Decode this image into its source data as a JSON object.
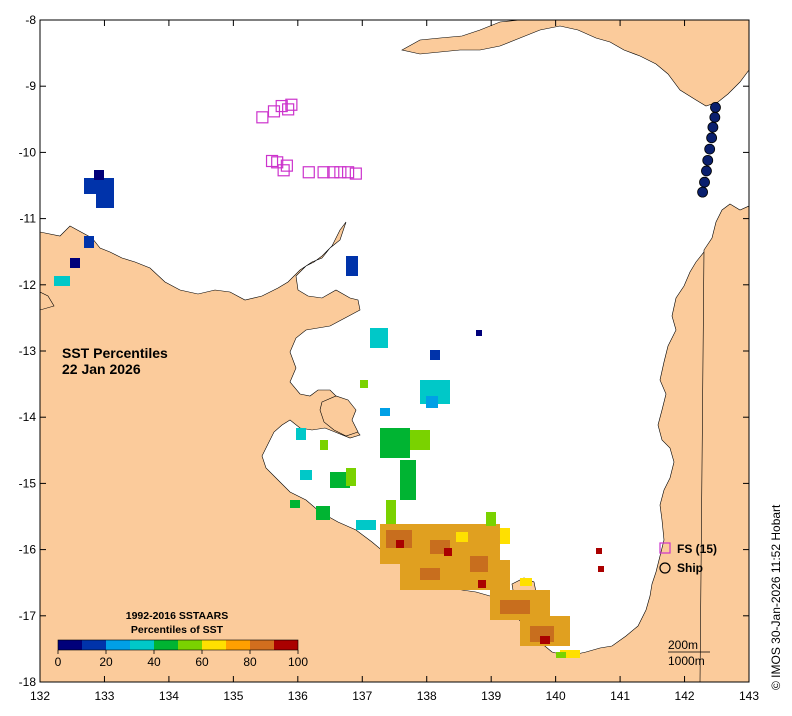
{
  "map": {
    "title_line1": "SST Percentiles",
    "title_line2": "22 Jan 2026",
    "credit": "© IMOS 30-Jan-2026 11:52 Hobart",
    "lon_range": [
      132,
      143
    ],
    "lat_range": [
      -18,
      -8
    ],
    "lon_ticks": [
      "132",
      "133",
      "134",
      "135",
      "136",
      "137",
      "138",
      "139",
      "140",
      "141",
      "142",
      "143"
    ],
    "lat_ticks": [
      "-8",
      "-9",
      "-10",
      "-11",
      "-12",
      "-13",
      "-14",
      "-15",
      "-16",
      "-17",
      "-18"
    ],
    "land_color": "#fbcb9b",
    "sea_color": "#ffffff"
  },
  "legend": {
    "fs_label": "FS (15)",
    "ship_label": "Ship",
    "fs_color": "#cc33cc",
    "ship_color": "#000000"
  },
  "colorbar": {
    "title_line1": "1992-2016 SSTAARS",
    "title_line2": "Percentiles of SST",
    "tick_labels": [
      "0",
      "20",
      "40",
      "60",
      "80",
      "100"
    ],
    "colors": [
      "#00007a",
      "#0033aa",
      "#00a0e6",
      "#00c8c8",
      "#00b432",
      "#7ad200",
      "#ffe000",
      "#ffa000",
      "#d26e1e",
      "#aa0000"
    ]
  },
  "depth_contours": {
    "line1": "200m",
    "line2": "1000m"
  },
  "float_stations": [
    {
      "lon": 135.45,
      "lat": -9.47
    },
    {
      "lon": 135.63,
      "lat": -9.38
    },
    {
      "lon": 135.75,
      "lat": -9.3
    },
    {
      "lon": 135.85,
      "lat": -9.35
    },
    {
      "lon": 135.9,
      "lat": -9.28
    },
    {
      "lon": 135.6,
      "lat": -10.13
    },
    {
      "lon": 135.68,
      "lat": -10.15
    },
    {
      "lon": 135.78,
      "lat": -10.27
    },
    {
      "lon": 135.83,
      "lat": -10.2
    },
    {
      "lon": 136.17,
      "lat": -10.3
    },
    {
      "lon": 136.4,
      "lat": -10.3
    },
    {
      "lon": 136.55,
      "lat": -10.3
    },
    {
      "lon": 136.66,
      "lat": -10.3
    },
    {
      "lon": 136.78,
      "lat": -10.3
    },
    {
      "lon": 136.9,
      "lat": -10.32
    }
  ],
  "ship_track": [
    {
      "lon": 142.48,
      "lat": -9.32
    },
    {
      "lon": 142.47,
      "lat": -9.47
    },
    {
      "lon": 142.44,
      "lat": -9.62
    },
    {
      "lon": 142.42,
      "lat": -9.78
    },
    {
      "lon": 142.39,
      "lat": -9.95
    },
    {
      "lon": 142.36,
      "lat": -10.12
    },
    {
      "lon": 142.34,
      "lat": -10.28
    },
    {
      "lon": 142.31,
      "lat": -10.45
    },
    {
      "lon": 142.28,
      "lat": -10.6
    }
  ]
}
